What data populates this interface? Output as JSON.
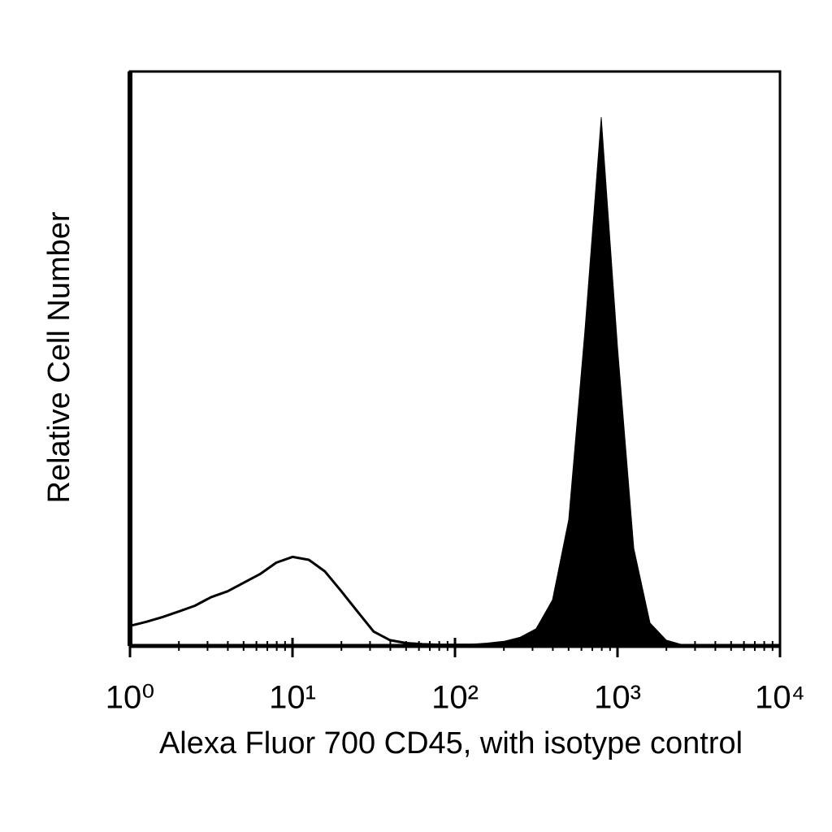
{
  "chart_data": {
    "type": "histogram-overlay",
    "xlabel": "Alexa Fluor 700 CD45, with isotype control",
    "ylabel": "Relative Cell Number",
    "xscale": "log",
    "xlim": [
      1,
      10000
    ],
    "ylim": [
      0,
      100
    ],
    "xticks": [
      {
        "value": 1,
        "label": "10⁰"
      },
      {
        "value": 10,
        "label": "10¹"
      },
      {
        "value": 100,
        "label": "10²"
      },
      {
        "value": 1000,
        "label": "10³"
      },
      {
        "value": 10000,
        "label": "10⁴"
      }
    ],
    "x": [
      1,
      1.26,
      1.58,
      2,
      2.51,
      3.16,
      3.98,
      5.01,
      6.31,
      7.94,
      10,
      12.6,
      15.8,
      20,
      25.1,
      31.6,
      39.8,
      50.1,
      63.1,
      79.4,
      100,
      126,
      158,
      200,
      251,
      316,
      398,
      501,
      631,
      794,
      1000,
      1259,
      1585,
      1995,
      2512,
      3162,
      3981,
      5012,
      6310,
      7943,
      10000
    ],
    "series": [
      {
        "color": "#000000",
        "filled": false,
        "values": [
          3.5,
          4.2,
          5,
          6,
          7,
          8.5,
          9.5,
          11,
          12.5,
          14.5,
          15.5,
          15,
          13,
          9.5,
          6,
          2.5,
          1,
          0.5,
          0.3,
          0.2,
          0.2,
          0.2,
          0.2,
          0,
          0,
          0,
          0,
          0,
          0,
          0,
          0,
          0,
          0,
          0,
          0,
          0,
          0,
          0,
          0,
          0,
          0
        ]
      },
      {
        "color": "#000000",
        "filled": true,
        "values": [
          0,
          0,
          0,
          0,
          0,
          0,
          0,
          0,
          0,
          0,
          0,
          0,
          0,
          0,
          0,
          0,
          0,
          0,
          0,
          0,
          0.2,
          0.3,
          0.5,
          0.8,
          1.5,
          3,
          8,
          22,
          55,
          92,
          52,
          17,
          4,
          1,
          0.2,
          0,
          0,
          0,
          0,
          0,
          0
        ]
      }
    ]
  }
}
